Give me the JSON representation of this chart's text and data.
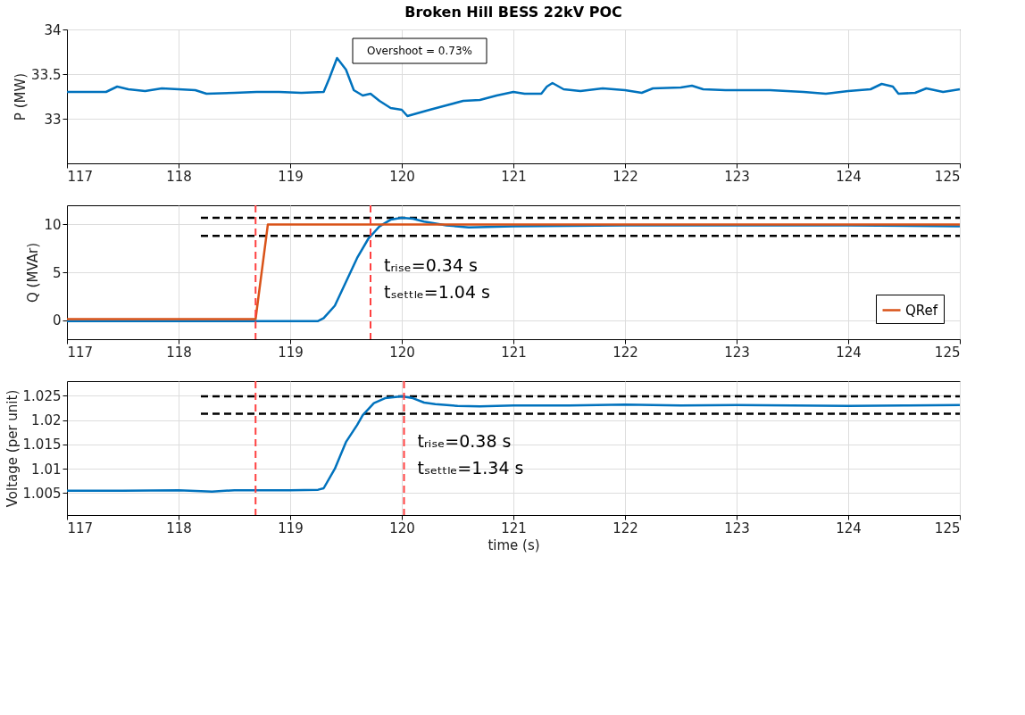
{
  "chart_data": [
    {
      "type": "line",
      "title": "Broken Hill BESS 22kV POC",
      "ylabel": "P (MW)",
      "xlim": [
        117,
        125
      ],
      "xticks": [
        117,
        118,
        119,
        120,
        121,
        122,
        123,
        124,
        125
      ],
      "ylim": [
        32.5,
        34
      ],
      "yticks": [
        33,
        33.5,
        34
      ],
      "grid": true,
      "legend": false,
      "annotations": [
        "Overshoot = 0.73%"
      ],
      "series": [
        {
          "color": "#0072bd",
          "x": [
            117,
            117.35,
            117.45,
            117.55,
            117.7,
            117.85,
            118.0,
            118.15,
            118.25,
            118.5,
            118.7,
            118.9,
            119.1,
            119.3,
            119.35,
            119.42,
            119.5,
            119.57,
            119.65,
            119.72,
            119.8,
            119.9,
            120.0,
            120.05,
            120.25,
            120.4,
            120.55,
            120.7,
            120.85,
            121.0,
            121.1,
            121.25,
            121.3,
            121.35,
            121.45,
            121.6,
            121.8,
            122.0,
            122.15,
            122.25,
            122.5,
            122.6,
            122.7,
            122.9,
            123.3,
            123.6,
            123.8,
            124.0,
            124.2,
            124.3,
            124.4,
            124.45,
            124.6,
            124.7,
            124.85,
            125
          ],
          "values": [
            33.3,
            33.3,
            33.36,
            33.33,
            33.31,
            33.34,
            33.33,
            33.32,
            33.28,
            33.29,
            33.3,
            33.3,
            33.29,
            33.3,
            33.45,
            33.68,
            33.55,
            33.32,
            33.26,
            33.28,
            33.2,
            33.12,
            33.1,
            33.03,
            33.1,
            33.15,
            33.2,
            33.21,
            33.26,
            33.3,
            33.28,
            33.28,
            33.36,
            33.4,
            33.33,
            33.31,
            33.34,
            33.32,
            33.29,
            33.34,
            33.35,
            33.37,
            33.33,
            33.32,
            33.32,
            33.3,
            33.28,
            33.31,
            33.33,
            33.39,
            33.36,
            33.28,
            33.29,
            33.34,
            33.3,
            33.33
          ]
        }
      ]
    },
    {
      "type": "line",
      "ylabel": "Q (MVAr)",
      "xlim": [
        117,
        125
      ],
      "xticks": [
        117,
        118,
        119,
        120,
        121,
        122,
        123,
        124,
        125
      ],
      "ylim": [
        -2,
        12
      ],
      "yticks": [
        0,
        5,
        10
      ],
      "grid": true,
      "legend": "bottom right",
      "annotations": [
        "tᵣᵢₛₑ=0.34 s",
        "tₛₑₜₜₗₑ=1.04 s"
      ],
      "ref_lines": [
        {
          "axis": "x",
          "value": 118.69,
          "color": "#ff4040",
          "line_style": "dashed"
        },
        {
          "axis": "x",
          "value": 119.72,
          "color": "#ff4040",
          "line_style": "dashed"
        }
      ],
      "series": [
        {
          "color": "#000000",
          "line_style": "dashed",
          "x": [
            118.2,
            125
          ],
          "values": [
            10.7,
            10.7
          ]
        },
        {
          "color": "#000000",
          "line_style": "dashed",
          "x": [
            118.2,
            125
          ],
          "values": [
            8.8,
            8.8
          ]
        },
        {
          "color": "#0072bd",
          "x": [
            117,
            118,
            119,
            119.25,
            119.3,
            119.4,
            119.5,
            119.6,
            119.7,
            119.8,
            119.9,
            120.0,
            120.1,
            120.2,
            120.4,
            120.6,
            121,
            122,
            123,
            124,
            125
          ],
          "values": [
            -0.1,
            -0.1,
            -0.1,
            -0.1,
            0.2,
            1.5,
            4,
            6.5,
            8.5,
            9.8,
            10.5,
            10.7,
            10.6,
            10.3,
            9.9,
            9.7,
            9.8,
            9.9,
            9.9,
            9.9,
            9.8
          ]
        },
        {
          "name": "QRef",
          "color": "#d95319",
          "x": [
            117,
            118.69,
            118.8,
            125
          ],
          "values": [
            0.1,
            0.1,
            10,
            10
          ]
        }
      ]
    },
    {
      "type": "line",
      "ylabel": "Voltage (per unit)",
      "xlabel": "time (s)",
      "xlim": [
        117,
        125
      ],
      "xticks": [
        117,
        118,
        119,
        120,
        121,
        122,
        123,
        124,
        125
      ],
      "ylim": [
        1.0005,
        1.028
      ],
      "yticks": [
        1.005,
        1.01,
        1.015,
        1.02,
        1.025
      ],
      "grid": true,
      "legend": false,
      "annotations": [
        "tᵣᵢₛₑ=0.38 s",
        "tₛₑₜₜₗₑ=1.34 s"
      ],
      "ref_lines": [
        {
          "axis": "x",
          "value": 118.69,
          "color": "#ff4040",
          "line_style": "dashed"
        },
        {
          "axis": "x",
          "value": 120.02,
          "color": "#ff4040",
          "line_style": "dashed"
        }
      ],
      "series": [
        {
          "color": "#000000",
          "line_style": "dashed",
          "x": [
            118.2,
            125
          ],
          "values": [
            1.0249,
            1.0249
          ]
        },
        {
          "color": "#000000",
          "line_style": "dashed",
          "x": [
            118.2,
            125
          ],
          "values": [
            1.0213,
            1.0213
          ]
        },
        {
          "color": "#0072bd",
          "x": [
            117,
            117.5,
            118,
            118.3,
            118.5,
            119,
            119.25,
            119.3,
            119.4,
            119.5,
            119.6,
            119.65,
            119.75,
            119.85,
            120.0,
            120.1,
            120.2,
            120.3,
            120.5,
            120.7,
            121,
            121.5,
            122,
            122.5,
            123,
            123.5,
            124,
            124.5,
            125
          ],
          "values": [
            1.0055,
            1.0055,
            1.0056,
            1.0053,
            1.0056,
            1.0056,
            1.0057,
            1.006,
            1.01,
            1.0155,
            1.019,
            1.021,
            1.0235,
            1.0245,
            1.0249,
            1.0245,
            1.0236,
            1.0233,
            1.0229,
            1.0228,
            1.023,
            1.023,
            1.0232,
            1.023,
            1.0231,
            1.023,
            1.0229,
            1.023,
            1.0231
          ]
        }
      ]
    }
  ]
}
